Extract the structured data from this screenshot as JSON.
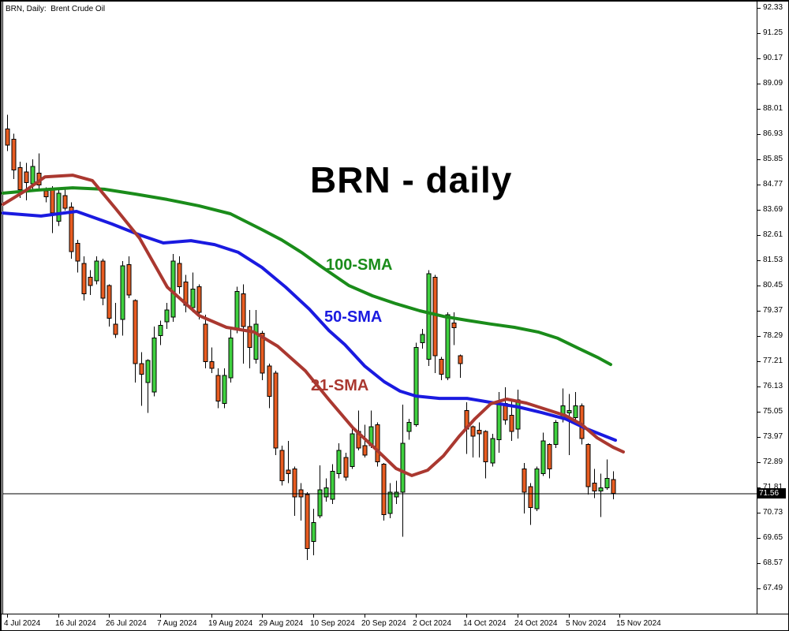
{
  "window": {
    "symbol_label": "BRN, Daily:  Brent Crude Oil"
  },
  "title": "BRN - daily",
  "sma_labels": [
    {
      "text": "100-SMA",
      "color": "#1A8C1A"
    },
    {
      "text": "50-SMA",
      "color": "#1A1AE0"
    },
    {
      "text": "21-SMA",
      "color": "#AA3830"
    }
  ],
  "price_axis": {
    "ticks": [
      "92.33",
      "91.25",
      "90.17",
      "89.09",
      "88.01",
      "86.93",
      "85.85",
      "84.77",
      "83.69",
      "82.61",
      "81.53",
      "80.45",
      "79.37",
      "78.29",
      "77.21",
      "76.13",
      "75.05",
      "73.97",
      "72.89",
      "71.81",
      "70.73",
      "69.65",
      "68.57",
      "67.49"
    ],
    "current_price": "71.56"
  },
  "time_axis": {
    "labels": [
      "4 Jul 2024",
      "16 Jul 2024",
      "26 Jul 2024",
      "7 Aug 2024",
      "19 Aug 2024",
      "29 Aug 2024",
      "10 Sep 2024",
      "20 Sep 2024",
      "2 Oct 2024",
      "14 Oct 2024",
      "24 Oct 2024",
      "5 Nov 2024",
      "15 Nov 2024"
    ]
  },
  "colors": {
    "bull": "#3FD13F",
    "bear": "#E85C21",
    "wick": "#000000",
    "sma100": "#1A8C1A",
    "sma50": "#1A1AE0",
    "sma21": "#AA3830",
    "current_line": "#000000",
    "axis_line": "#000000"
  },
  "chart_data": {
    "type": "candlestick",
    "symbol": "BRN",
    "timeframe": "Daily",
    "title": "BRN - daily",
    "ylim": [
      67.49,
      92.33
    ],
    "y_tick_step": 1.08,
    "x_tick_labels": [
      "4 Jul 2024",
      "16 Jul 2024",
      "26 Jul 2024",
      "7 Aug 2024",
      "19 Aug 2024",
      "29 Aug 2024",
      "10 Sep 2024",
      "20 Sep 2024",
      "2 Oct 2024",
      "14 Oct 2024",
      "24 Oct 2024",
      "5 Nov 2024",
      "15 Nov 2024"
    ],
    "x_ticks_every_bars": 8,
    "current_price": 71.56,
    "candles_ohlc": [
      [
        87.15,
        87.75,
        86.2,
        86.45
      ],
      [
        86.7,
        86.95,
        85.0,
        85.4
      ],
      [
        85.5,
        85.75,
        84.2,
        84.55
      ],
      [
        85.3,
        85.7,
        84.1,
        84.85
      ],
      [
        84.8,
        85.85,
        84.55,
        85.55
      ],
      [
        85.25,
        86.1,
        84.5,
        84.75
      ],
      [
        84.5,
        84.65,
        84.0,
        84.25
      ],
      [
        84.55,
        84.7,
        82.7,
        83.55
      ],
      [
        83.2,
        84.6,
        83.0,
        84.4
      ],
      [
        84.3,
        84.55,
        83.65,
        83.75
      ],
      [
        83.8,
        84.0,
        81.6,
        81.9
      ],
      [
        82.25,
        82.4,
        81.0,
        81.5
      ],
      [
        81.4,
        81.7,
        79.8,
        80.1
      ],
      [
        80.8,
        81.1,
        80.05,
        80.45
      ],
      [
        80.65,
        81.7,
        80.5,
        81.5
      ],
      [
        81.5,
        81.6,
        79.6,
        79.9
      ],
      [
        80.45,
        80.5,
        78.7,
        79.05
      ],
      [
        78.8,
        79.7,
        78.2,
        78.35
      ],
      [
        79.0,
        81.5,
        78.3,
        81.3
      ],
      [
        81.35,
        81.7,
        79.9,
        80.05
      ],
      [
        79.8,
        79.85,
        76.3,
        77.1
      ],
      [
        77.1,
        77.6,
        75.3,
        76.65
      ],
      [
        76.3,
        77.3,
        75.0,
        77.25
      ],
      [
        75.9,
        78.7,
        75.7,
        78.2
      ],
      [
        78.3,
        78.95,
        77.9,
        78.75
      ],
      [
        78.9,
        79.7,
        78.6,
        79.4
      ],
      [
        79.1,
        81.8,
        78.9,
        81.5
      ],
      [
        81.4,
        81.7,
        80.1,
        80.4
      ],
      [
        80.6,
        80.9,
        79.3,
        79.6
      ],
      [
        79.5,
        81.0,
        79.3,
        80.3
      ],
      [
        80.4,
        80.5,
        79.0,
        79.3
      ],
      [
        78.8,
        79.2,
        76.9,
        77.2
      ],
      [
        77.2,
        77.8,
        76.7,
        76.9
      ],
      [
        76.6,
        76.9,
        75.2,
        75.5
      ],
      [
        75.4,
        76.9,
        75.2,
        76.6
      ],
      [
        76.5,
        78.6,
        76.3,
        78.2
      ],
      [
        78.6,
        80.4,
        78.4,
        80.2
      ],
      [
        80.1,
        80.5,
        77.1,
        78.7
      ],
      [
        78.7,
        79.4,
        76.9,
        77.8
      ],
      [
        77.3,
        79.4,
        77.1,
        78.8
      ],
      [
        78.4,
        78.5,
        76.4,
        76.7
      ],
      [
        77.0,
        77.1,
        75.2,
        75.7
      ],
      [
        76.7,
        76.8,
        73.2,
        73.5
      ],
      [
        73.4,
        73.6,
        71.9,
        72.1
      ],
      [
        72.55,
        73.8,
        72.0,
        72.4
      ],
      [
        72.6,
        72.7,
        70.6,
        71.4
      ],
      [
        71.7,
        72.0,
        70.4,
        71.4
      ],
      [
        71.5,
        71.6,
        68.7,
        69.2
      ],
      [
        69.5,
        70.9,
        68.9,
        70.3
      ],
      [
        70.6,
        72.75,
        70.5,
        71.7
      ],
      [
        71.4,
        72.2,
        71.2,
        71.8
      ],
      [
        71.3,
        72.8,
        71.1,
        72.5
      ],
      [
        72.4,
        73.7,
        72.2,
        73.4
      ],
      [
        73.1,
        73.3,
        72.1,
        72.25
      ],
      [
        72.7,
        74.4,
        72.6,
        74.1
      ],
      [
        74.2,
        75.1,
        73.4,
        73.5
      ],
      [
        73.6,
        74.5,
        73.1,
        73.2
      ],
      [
        73.6,
        75.1,
        73.5,
        74.4
      ],
      [
        74.5,
        74.6,
        72.7,
        72.9
      ],
      [
        72.8,
        72.85,
        70.4,
        70.65
      ],
      [
        70.7,
        72.0,
        70.5,
        71.6
      ],
      [
        71.4,
        72.1,
        71.1,
        71.6
      ],
      [
        71.6,
        75.35,
        69.7,
        73.7
      ],
      [
        74.2,
        74.75,
        73.85,
        74.6
      ],
      [
        74.5,
        78.0,
        74.4,
        77.8
      ],
      [
        78.0,
        78.6,
        77.75,
        78.35
      ],
      [
        77.3,
        81.1,
        77.0,
        80.95
      ],
      [
        80.8,
        80.9,
        76.7,
        77.45
      ],
      [
        77.3,
        77.4,
        76.4,
        76.65
      ],
      [
        76.5,
        79.3,
        76.4,
        79.2
      ],
      [
        78.85,
        79.3,
        77.9,
        78.65
      ],
      [
        77.45,
        77.5,
        76.5,
        77.1
      ],
      [
        75.1,
        75.45,
        73.25,
        74.3
      ],
      [
        74.4,
        74.45,
        73.1,
        74.0
      ],
      [
        74.25,
        74.6,
        73.1,
        74.1
      ],
      [
        74.2,
        74.25,
        72.2,
        72.9
      ],
      [
        72.85,
        74.1,
        72.7,
        73.9
      ],
      [
        73.85,
        75.9,
        73.3,
        75.4
      ],
      [
        75.4,
        76.1,
        74.5,
        74.7
      ],
      [
        74.9,
        75.6,
        73.8,
        74.2
      ],
      [
        74.3,
        76.0,
        73.9,
        75.55
      ],
      [
        72.6,
        72.85,
        70.7,
        71.6
      ],
      [
        71.85,
        72.0,
        70.2,
        70.95
      ],
      [
        70.9,
        72.7,
        70.8,
        72.6
      ],
      [
        72.4,
        74.15,
        72.3,
        73.8
      ],
      [
        73.65,
        73.7,
        72.2,
        72.6
      ],
      [
        73.65,
        74.7,
        73.5,
        74.6
      ],
      [
        74.8,
        76.05,
        74.6,
        75.3
      ],
      [
        75.0,
        75.8,
        73.2,
        75.1
      ],
      [
        74.8,
        75.9,
        74.5,
        75.3
      ],
      [
        75.3,
        75.4,
        73.65,
        73.9
      ],
      [
        73.65,
        73.7,
        71.5,
        71.85
      ],
      [
        72.0,
        72.6,
        71.35,
        71.65
      ],
      [
        71.65,
        72.4,
        70.55,
        71.8
      ],
      [
        71.8,
        73.0,
        71.7,
        72.2
      ],
      [
        72.15,
        72.5,
        71.3,
        71.56
      ]
    ],
    "sma": [
      {
        "name": "100-SMA",
        "points_x_price": [
          [
            2,
            84.4
          ],
          [
            45,
            84.53
          ],
          [
            90,
            84.63
          ],
          [
            130,
            84.57
          ],
          [
            170,
            84.36
          ],
          [
            210,
            84.13
          ],
          [
            250,
            83.86
          ],
          [
            290,
            83.52
          ],
          [
            330,
            82.84
          ],
          [
            355,
            82.4
          ],
          [
            380,
            81.87
          ],
          [
            405,
            81.26
          ],
          [
            440,
            80.45
          ],
          [
            470,
            80.01
          ],
          [
            500,
            79.67
          ],
          [
            530,
            79.37
          ],
          [
            560,
            79.13
          ],
          [
            590,
            78.96
          ],
          [
            620,
            78.8
          ],
          [
            650,
            78.66
          ],
          [
            680,
            78.46
          ],
          [
            705,
            78.19
          ],
          [
            730,
            77.78
          ],
          [
            755,
            77.38
          ],
          [
            772,
            77.07
          ]
        ]
      },
      {
        "name": "50-SMA",
        "points_x_price": [
          [
            2,
            83.55
          ],
          [
            50,
            83.42
          ],
          [
            95,
            83.62
          ],
          [
            140,
            83.08
          ],
          [
            175,
            82.61
          ],
          [
            205,
            82.27
          ],
          [
            240,
            82.37
          ],
          [
            270,
            82.2
          ],
          [
            300,
            81.87
          ],
          [
            330,
            81.22
          ],
          [
            360,
            80.38
          ],
          [
            390,
            79.44
          ],
          [
            415,
            78.52
          ],
          [
            435,
            77.92
          ],
          [
            460,
            77.01
          ],
          [
            485,
            76.33
          ],
          [
            505,
            75.93
          ],
          [
            525,
            75.72
          ],
          [
            555,
            75.62
          ],
          [
            590,
            75.62
          ],
          [
            625,
            75.42
          ],
          [
            655,
            75.25
          ],
          [
            685,
            75.01
          ],
          [
            715,
            74.74
          ],
          [
            740,
            74.34
          ],
          [
            760,
            74.07
          ],
          [
            778,
            73.83
          ]
        ]
      },
      {
        "name": "21-SMA",
        "points_x_price": [
          [
            2,
            83.92
          ],
          [
            30,
            84.5
          ],
          [
            55,
            85.1
          ],
          [
            90,
            85.17
          ],
          [
            115,
            84.94
          ],
          [
            145,
            83.72
          ],
          [
            175,
            82.47
          ],
          [
            210,
            80.38
          ],
          [
            250,
            79.17
          ],
          [
            285,
            78.66
          ],
          [
            320,
            78.46
          ],
          [
            350,
            77.85
          ],
          [
            385,
            76.8
          ],
          [
            415,
            75.56
          ],
          [
            445,
            74.37
          ],
          [
            475,
            73.43
          ],
          [
            500,
            72.62
          ],
          [
            520,
            72.32
          ],
          [
            540,
            72.55
          ],
          [
            560,
            73.16
          ],
          [
            580,
            74.0
          ],
          [
            600,
            74.75
          ],
          [
            620,
            75.39
          ],
          [
            640,
            75.59
          ],
          [
            665,
            75.42
          ],
          [
            690,
            75.15
          ],
          [
            715,
            74.88
          ],
          [
            735,
            74.51
          ],
          [
            755,
            73.93
          ],
          [
            775,
            73.53
          ],
          [
            788,
            73.33
          ]
        ]
      }
    ]
  }
}
